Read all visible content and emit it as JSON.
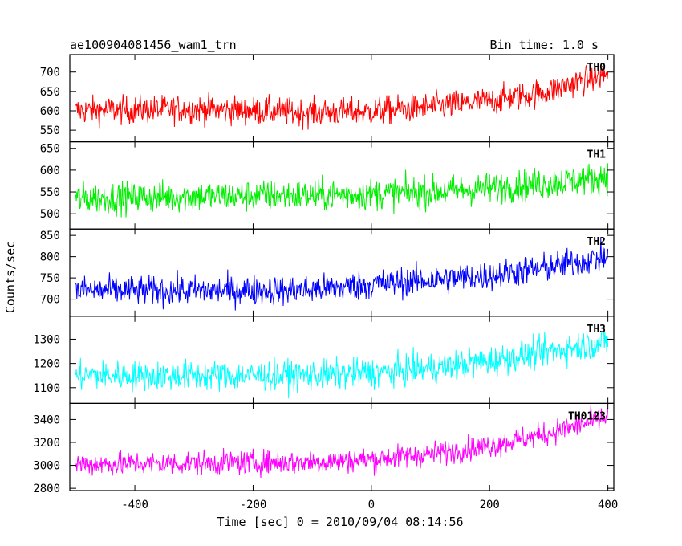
{
  "chart_data": {
    "type": "line",
    "title": "ae100904081456_wam1_trn",
    "bin_time": "Bin time: 1.0 s",
    "xlabel": "Time [sec] 0 = 2010/09/04 08:14:56",
    "ylabel": "Counts/sec",
    "xlim": [
      -510,
      410
    ],
    "xticks": [
      -400,
      -200,
      0,
      200,
      400
    ],
    "grid": false,
    "legend": "none",
    "panels": [
      {
        "name": "TH0",
        "color": "#ff0000",
        "ylim": [
          520,
          745
        ],
        "yticks": [
          550,
          600,
          650,
          700
        ],
        "trend": [
          [
            -500,
            600
          ],
          [
            -300,
            605
          ],
          [
            -100,
            595
          ],
          [
            0,
            598
          ],
          [
            100,
            610
          ],
          [
            200,
            625
          ],
          [
            300,
            650
          ],
          [
            350,
            675
          ],
          [
            400,
            695
          ]
        ],
        "noise": 26
      },
      {
        "name": "TH1",
        "color": "#00ee00",
        "ylim": [
          465,
          665
        ],
        "yticks": [
          500,
          550,
          600,
          650
        ],
        "trend": [
          [
            -500,
            535
          ],
          [
            -300,
            540
          ],
          [
            -100,
            542
          ],
          [
            0,
            545
          ],
          [
            100,
            550
          ],
          [
            200,
            558
          ],
          [
            300,
            570
          ],
          [
            400,
            585
          ]
        ],
        "noise": 26
      },
      {
        "name": "TH2",
        "color": "#0000ff",
        "ylim": [
          660,
          865
        ],
        "yticks": [
          700,
          750,
          800,
          850
        ],
        "trend": [
          [
            -500,
            720
          ],
          [
            -300,
            720
          ],
          [
            -100,
            722
          ],
          [
            0,
            735
          ],
          [
            100,
            745
          ],
          [
            200,
            755
          ],
          [
            300,
            775
          ],
          [
            400,
            800
          ]
        ],
        "noise": 25
      },
      {
        "name": "TH3",
        "color": "#00ffff",
        "ylim": [
          1035,
          1395
        ],
        "yticks": [
          1100,
          1200,
          1300
        ],
        "trend": [
          [
            -500,
            1150
          ],
          [
            -300,
            1150
          ],
          [
            -100,
            1150
          ],
          [
            0,
            1160
          ],
          [
            100,
            1180
          ],
          [
            200,
            1210
          ],
          [
            300,
            1250
          ],
          [
            400,
            1290
          ]
        ],
        "noise": 45
      },
      {
        "name": "TH0123",
        "color": "#ff00ff",
        "ylim": [
          2780,
          3540
        ],
        "yticks": [
          2800,
          3000,
          3200,
          3400
        ],
        "trend": [
          [
            -500,
            3010
          ],
          [
            -300,
            3020
          ],
          [
            -100,
            3030
          ],
          [
            0,
            3050
          ],
          [
            100,
            3100
          ],
          [
            200,
            3170
          ],
          [
            300,
            3280
          ],
          [
            400,
            3420
          ]
        ],
        "noise": 75
      }
    ]
  }
}
